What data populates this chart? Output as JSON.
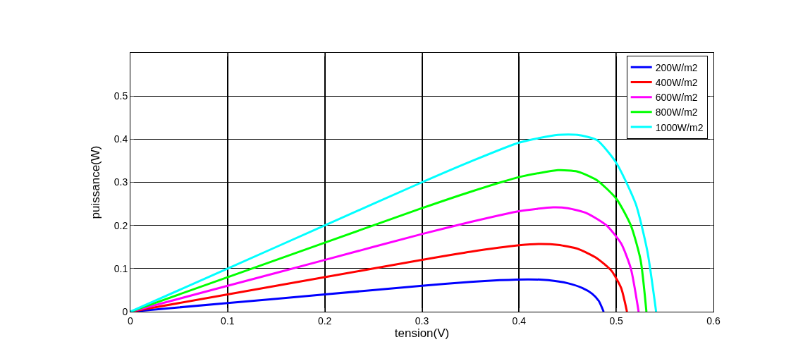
{
  "chart_data": {
    "type": "line",
    "xlabel": "tension(V)",
    "ylabel": "puissance(W)",
    "xlim": [
      0,
      0.6
    ],
    "ylim": [
      0,
      0.6
    ],
    "xticks": [
      0,
      0.1,
      0.2,
      0.3,
      0.4,
      0.5,
      0.6
    ],
    "yticks": [
      0,
      0.1,
      0.2,
      0.3,
      0.4,
      0.5
    ],
    "grid": true,
    "legend": "top right",
    "marker": "none",
    "line_style": "solid",
    "series": [
      {
        "name": "200W/m2",
        "color": "#0000ff",
        "x": [
          0,
          0.1,
          0.2,
          0.3,
          0.35,
          0.38,
          0.41,
          0.43,
          0.45,
          0.465,
          0.475,
          0.482,
          0.487
        ],
        "values": [
          0,
          0.02,
          0.04,
          0.06,
          0.069,
          0.073,
          0.075,
          0.073,
          0.066,
          0.055,
          0.042,
          0.025,
          0
        ]
      },
      {
        "name": "400W/m2",
        "color": "#ff0000",
        "x": [
          0,
          0.1,
          0.2,
          0.3,
          0.35,
          0.4,
          0.42,
          0.44,
          0.46,
          0.48,
          0.495,
          0.505,
          0.511
        ],
        "values": [
          0,
          0.04,
          0.08,
          0.12,
          0.139,
          0.154,
          0.157,
          0.155,
          0.146,
          0.124,
          0.095,
          0.055,
          0
        ]
      },
      {
        "name": "600W/m2",
        "color": "#ff00ff",
        "x": [
          0,
          0.1,
          0.2,
          0.3,
          0.35,
          0.4,
          0.435,
          0.45,
          0.47,
          0.49,
          0.505,
          0.515,
          0.523
        ],
        "values": [
          0,
          0.06,
          0.12,
          0.18,
          0.208,
          0.233,
          0.242,
          0.24,
          0.228,
          0.2,
          0.158,
          0.1,
          0
        ]
      },
      {
        "name": "800W/m2",
        "color": "#00ff00",
        "x": [
          0,
          0.1,
          0.2,
          0.3,
          0.35,
          0.4,
          0.44,
          0.46,
          0.48,
          0.5,
          0.515,
          0.525,
          0.531
        ],
        "values": [
          0,
          0.08,
          0.16,
          0.24,
          0.278,
          0.312,
          0.328,
          0.325,
          0.305,
          0.262,
          0.2,
          0.12,
          0
        ]
      },
      {
        "name": "1000W/m2",
        "color": "#00ffff",
        "x": [
          0,
          0.1,
          0.2,
          0.3,
          0.35,
          0.4,
          0.44,
          0.46,
          0.48,
          0.5,
          0.52,
          0.532,
          0.541
        ],
        "values": [
          0,
          0.1,
          0.2,
          0.3,
          0.348,
          0.392,
          0.41,
          0.41,
          0.398,
          0.345,
          0.25,
          0.14,
          0
        ]
      }
    ]
  }
}
